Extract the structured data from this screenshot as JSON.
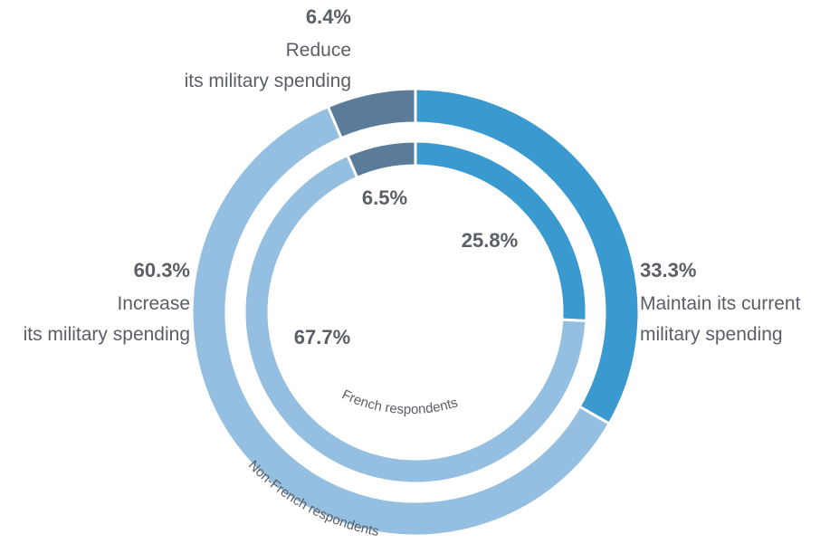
{
  "chart_data": {
    "type": "pie",
    "categories": [
      "Maintain its current military spending",
      "Increase its military spending",
      "Reduce its military spending"
    ],
    "series": [
      {
        "name": "Non-French respondents",
        "values": [
          33.3,
          60.3,
          6.4
        ],
        "labels": [
          "33.3%",
          "60.3%",
          "6.4%"
        ]
      },
      {
        "name": "French respondents",
        "values": [
          25.8,
          67.7,
          6.5
        ],
        "labels": [
          "25.8%",
          "67.7%",
          "6.5%"
        ]
      }
    ],
    "colors": [
      "#3a9ad0",
      "#95bfe0",
      "#5b7c99"
    ]
  },
  "annotations": {
    "reduce": {
      "line1": "Reduce",
      "line2": "its military spending"
    },
    "increase": {
      "line1": "Increase",
      "line2": "its military spending"
    },
    "maintain": {
      "line1": "Maintain its current",
      "line2": "military spending"
    }
  }
}
